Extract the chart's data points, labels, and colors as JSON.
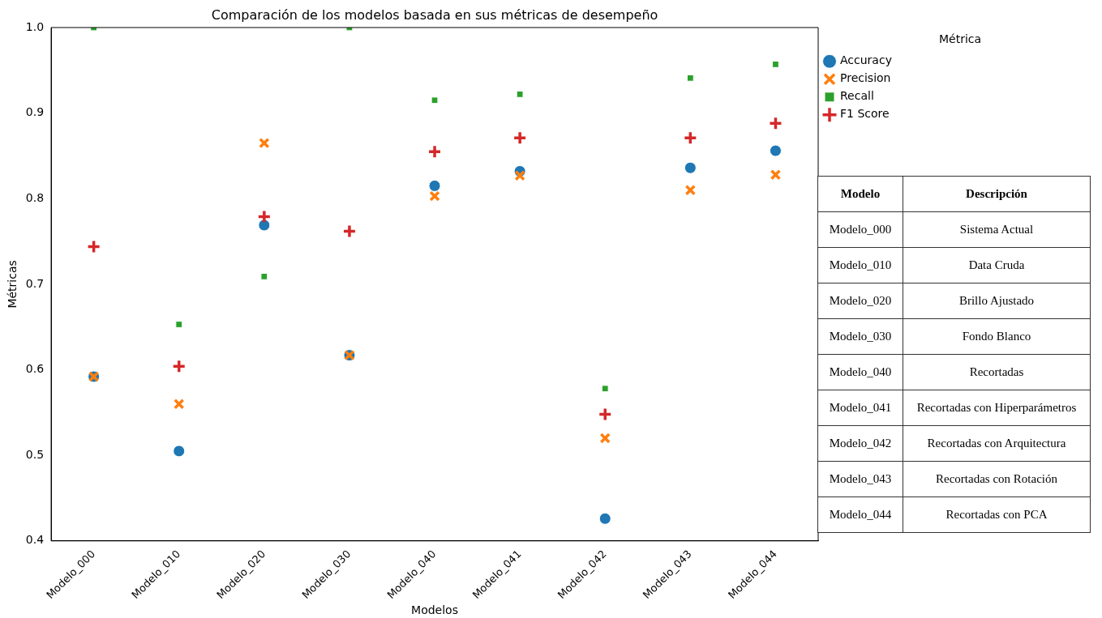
{
  "chart_data": {
    "type": "scatter",
    "title": "Comparación de los modelos basada en sus métricas de desempeño",
    "xlabel": "Modelos",
    "ylabel": "Métricas",
    "legend_title": "Métrica",
    "legend": "top right",
    "grid": false,
    "categories": [
      "Modelo_000",
      "Modelo_010",
      "Modelo_020",
      "Modelo_030",
      "Modelo_040",
      "Modelo_041",
      "Modelo_042",
      "Modelo_043",
      "Modelo_044"
    ],
    "series": [
      {
        "name": "Accuracy",
        "color": "#1f77b4",
        "marker": "circle",
        "values": [
          0.592,
          0.505,
          0.769,
          0.617,
          0.815,
          0.832,
          0.426,
          0.836,
          0.856
        ]
      },
      {
        "name": "Precision",
        "color": "#ff7f0e",
        "marker": "cross",
        "values": [
          0.592,
          0.56,
          0.865,
          0.617,
          0.803,
          0.827,
          0.52,
          0.81,
          0.828
        ]
      },
      {
        "name": "Recall",
        "color": "#2ca02c",
        "marker": "square",
        "values": [
          1.0,
          0.653,
          0.709,
          1.0,
          0.915,
          0.922,
          0.578,
          0.941,
          0.957
        ]
      },
      {
        "name": "F1 Score",
        "color": "#d62728",
        "marker": "plus",
        "values": [
          0.744,
          0.604,
          0.779,
          0.762,
          0.855,
          0.871,
          0.548,
          0.871,
          0.888
        ]
      }
    ],
    "ylim": [
      0.4,
      1.0
    ],
    "yticks": [
      0.4,
      0.5,
      0.6,
      0.7,
      0.8,
      0.9,
      {
        "value": 1,
        "label": "1.0"
      }
    ],
    "annotations": [
      "Modelo",
      "Descripción",
      "Modelo_000",
      "Sistema Actual",
      "Modelo_010",
      "Data Cruda",
      "Modelo_020",
      "Brillo Ajustado",
      "Modelo_030",
      "Fondo Blanco",
      "Modelo_040",
      "Recortadas",
      "Modelo_041",
      "Recortadas con Hiperparámetros",
      "Modelo_042",
      "Recortadas con Arquitectura",
      "Modelo_043",
      "Recortadas con Rotación",
      "Modelo_044",
      "Recortadas con PCA"
    ]
  }
}
